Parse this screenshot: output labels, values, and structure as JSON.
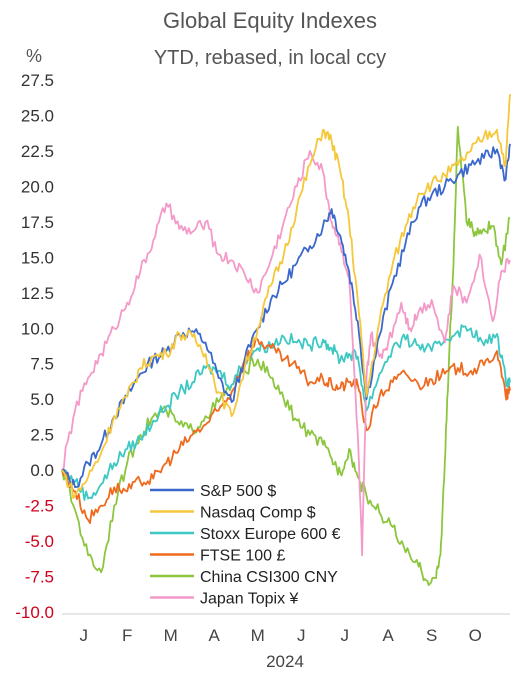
{
  "chart_data": {
    "type": "line",
    "title": "Global Equity Indexes",
    "subtitle": "YTD, rebased, in local ccy",
    "ylabel": "%",
    "xlabel": "2024",
    "ylim": [
      -10,
      27.5
    ],
    "yticks": [
      "27.5",
      "25.0",
      "22.5",
      "20.0",
      "17.5",
      "15.0",
      "12.5",
      "10.0",
      "7.5",
      "5.0",
      "2.5",
      "0.0",
      "-2.5",
      "-5.0",
      "-7.5",
      "-10.0"
    ],
    "negative_tick_color": "#d0021b",
    "month_ticks": [
      "J",
      "F",
      "M",
      "A",
      "M",
      "J",
      "J",
      "A",
      "S",
      "O"
    ],
    "month_positions": [
      0.5,
      1.5,
      2.5,
      3.5,
      4.5,
      5.5,
      6.5,
      7.5,
      8.5,
      9.5
    ],
    "x_range": [
      0,
      10.3
    ],
    "x_unit": "months since 1 Jan 2024",
    "legend_position": "bottom-left",
    "series": [
      {
        "name": "S&P 500 $",
        "color": "#3a68cc",
        "x": [
          0,
          0.3,
          0.6,
          0.9,
          1.2,
          1.5,
          1.8,
          2.1,
          2.4,
          2.7,
          3.0,
          3.3,
          3.6,
          3.9,
          4.2,
          4.5,
          4.8,
          5.1,
          5.4,
          5.7,
          6.0,
          6.2,
          6.4,
          6.6,
          6.8,
          7.0,
          7.3,
          7.6,
          7.9,
          8.2,
          8.5,
          8.8,
          9.1,
          9.4,
          9.7,
          10.0,
          10.2,
          10.3
        ],
        "y": [
          0.0,
          -1.2,
          0.5,
          1.8,
          3.8,
          5.2,
          6.8,
          7.8,
          8.4,
          9.6,
          9.8,
          9.0,
          6.5,
          4.8,
          7.8,
          10.0,
          12.0,
          13.2,
          14.6,
          15.8,
          17.2,
          18.4,
          16.5,
          14.0,
          10.5,
          5.0,
          9.5,
          13.2,
          16.0,
          18.5,
          19.4,
          20.0,
          20.8,
          21.5,
          22.0,
          22.6,
          20.5,
          23.0
        ]
      },
      {
        "name": "Nasdaq Comp $",
        "color": "#f5c73a",
        "x": [
          0,
          0.3,
          0.6,
          0.9,
          1.2,
          1.5,
          1.8,
          2.1,
          2.4,
          2.7,
          3.0,
          3.3,
          3.6,
          3.9,
          4.2,
          4.5,
          4.8,
          5.1,
          5.4,
          5.7,
          6.0,
          6.2,
          6.4,
          6.6,
          6.8,
          7.0,
          7.3,
          7.6,
          7.9,
          8.2,
          8.5,
          8.8,
          9.1,
          9.4,
          9.7,
          10.0,
          10.2,
          10.3
        ],
        "y": [
          0.0,
          -1.8,
          -0.5,
          1.2,
          3.8,
          5.2,
          7.2,
          8.0,
          8.2,
          9.6,
          9.4,
          8.2,
          5.5,
          3.8,
          7.2,
          10.0,
          13.0,
          15.2,
          18.5,
          21.5,
          24.0,
          23.2,
          21.0,
          17.5,
          12.0,
          5.2,
          10.5,
          14.5,
          17.2,
          19.5,
          20.2,
          20.8,
          21.5,
          22.5,
          23.5,
          24.0,
          21.5,
          26.5
        ]
      },
      {
        "name": "Stoxx Europe 600 €",
        "color": "#3ec8c3",
        "x": [
          0,
          0.3,
          0.6,
          0.9,
          1.2,
          1.5,
          1.8,
          2.1,
          2.4,
          2.7,
          3.0,
          3.3,
          3.6,
          3.9,
          4.2,
          4.5,
          4.8,
          5.1,
          5.4,
          5.7,
          6.0,
          6.2,
          6.4,
          6.6,
          6.8,
          7.0,
          7.3,
          7.6,
          7.9,
          8.2,
          8.5,
          8.8,
          9.1,
          9.4,
          9.7,
          10.0,
          10.2,
          10.3
        ],
        "y": [
          0.0,
          -0.8,
          -2.0,
          -1.0,
          0.5,
          1.5,
          2.2,
          3.5,
          4.5,
          5.5,
          6.2,
          7.2,
          7.0,
          6.0,
          7.8,
          8.6,
          8.8,
          9.4,
          9.0,
          8.8,
          9.2,
          8.6,
          7.8,
          8.2,
          8.0,
          4.2,
          6.8,
          8.6,
          9.2,
          8.8,
          8.4,
          9.2,
          9.8,
          10.0,
          8.8,
          9.6,
          6.4,
          6.2
        ]
      },
      {
        "name": "FTSE 100 £",
        "color": "#ef6a1e",
        "x": [
          0,
          0.3,
          0.6,
          0.9,
          1.2,
          1.5,
          1.8,
          2.1,
          2.4,
          2.7,
          3.0,
          3.3,
          3.6,
          3.9,
          4.2,
          4.5,
          4.8,
          5.1,
          5.4,
          5.7,
          6.0,
          6.2,
          6.4,
          6.6,
          6.8,
          7.0,
          7.3,
          7.6,
          7.9,
          8.2,
          8.5,
          8.8,
          9.1,
          9.4,
          9.7,
          10.0,
          10.2,
          10.3
        ],
        "y": [
          0.0,
          -1.5,
          -3.5,
          -2.5,
          -1.2,
          -1.5,
          -0.8,
          -0.6,
          0.5,
          1.5,
          2.5,
          3.2,
          4.2,
          5.5,
          7.8,
          9.2,
          8.6,
          7.8,
          7.2,
          6.2,
          6.4,
          6.0,
          5.8,
          6.2,
          6.0,
          2.8,
          5.2,
          6.2,
          6.8,
          6.0,
          6.4,
          6.8,
          7.2,
          7.0,
          7.4,
          8.4,
          5.2,
          5.6
        ]
      },
      {
        "name": "China CSI300 CNY",
        "color": "#8cc63f",
        "x": [
          0,
          0.3,
          0.6,
          0.9,
          1.2,
          1.5,
          1.8,
          2.1,
          2.4,
          2.7,
          3.0,
          3.3,
          3.6,
          3.9,
          4.2,
          4.5,
          4.8,
          5.1,
          5.4,
          5.7,
          6.0,
          6.2,
          6.4,
          6.6,
          6.8,
          7.0,
          7.3,
          7.6,
          7.9,
          8.2,
          8.4,
          8.6,
          8.7,
          8.8,
          8.9,
          9.0,
          9.1,
          9.3,
          9.5,
          9.7,
          9.9,
          10.1,
          10.3
        ],
        "y": [
          0.0,
          -2.8,
          -6.0,
          -7.2,
          -2.5,
          0.5,
          2.5,
          3.8,
          4.2,
          3.2,
          2.8,
          3.8,
          4.8,
          6.0,
          7.0,
          7.8,
          6.5,
          5.0,
          3.5,
          2.5,
          1.8,
          0.8,
          -0.2,
          1.5,
          -0.5,
          -1.8,
          -3.0,
          -4.0,
          -5.8,
          -6.8,
          -7.8,
          -7.6,
          -6.0,
          0.5,
          8.0,
          14.5,
          24.2,
          17.5,
          16.8,
          17.0,
          17.2,
          14.5,
          17.8
        ]
      },
      {
        "name": "Japan Topix ¥",
        "color": "#f49ac8",
        "x": [
          0,
          0.3,
          0.6,
          0.9,
          1.2,
          1.5,
          1.8,
          2.1,
          2.4,
          2.7,
          3.0,
          3.3,
          3.6,
          3.9,
          4.2,
          4.5,
          4.8,
          5.1,
          5.4,
          5.7,
          6.0,
          6.2,
          6.4,
          6.6,
          6.8,
          6.9,
          7.0,
          7.1,
          7.3,
          7.5,
          7.8,
          8.0,
          8.2,
          8.5,
          8.8,
          9.0,
          9.3,
          9.6,
          9.9,
          10.1,
          10.3
        ],
        "y": [
          0.0,
          4.2,
          6.5,
          8.2,
          10.0,
          11.8,
          14.0,
          16.2,
          18.8,
          17.0,
          16.8,
          17.5,
          15.2,
          14.8,
          13.8,
          12.5,
          14.8,
          17.5,
          20.0,
          22.5,
          21.0,
          17.5,
          16.0,
          13.5,
          2.5,
          -6.0,
          6.5,
          9.5,
          8.0,
          9.0,
          11.8,
          10.0,
          11.2,
          12.0,
          9.0,
          13.0,
          11.8,
          15.2,
          10.5,
          14.0,
          14.8
        ]
      }
    ]
  }
}
